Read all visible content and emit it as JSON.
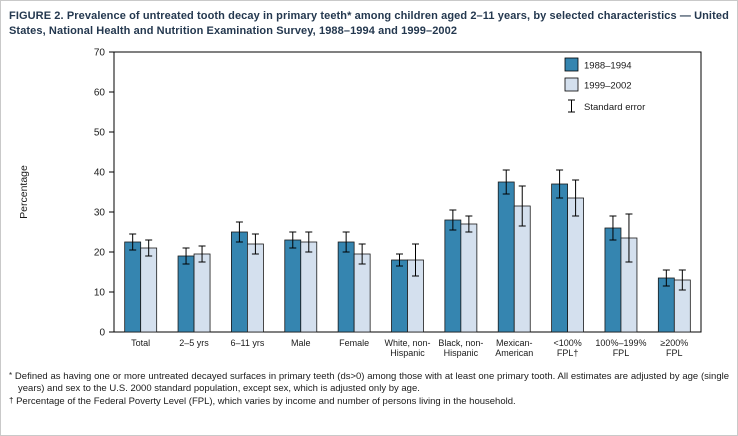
{
  "figure": {
    "title": "FIGURE 2. Prevalence of untreated tooth decay in primary teeth* among children aged 2–11 years, by selected characteristics — United States, National Health and Nutrition Examination Survey, 1988–1994 and 1999–2002",
    "footnotes": [
      {
        "marker": "*",
        "text": "Defined as having one or more untreated decayed surfaces in primary teeth (ds>0) among those with at least one primary tooth. All estimates are adjusted by age (single years) and sex to the U.S. 2000 standard population, except sex, which is adjusted only by age."
      },
      {
        "marker": "†",
        "text": "Percentage of the Federal Poverty Level (FPL), which varies by income and number of persons living in the household."
      }
    ]
  },
  "chart_data": {
    "type": "bar",
    "title": "Prevalence of untreated tooth decay in primary teeth among children aged 2–11 years, by selected characteristics, NHANES 1988–1994 and 1999–2002",
    "xlabel": "",
    "ylabel": "Percentage",
    "ylim": [
      0,
      70
    ],
    "yticks": [
      0,
      10,
      20,
      30,
      40,
      50,
      60,
      70
    ],
    "grid": false,
    "legend_position": "top-right",
    "legend": {
      "error_label": "Standard error"
    },
    "categories": [
      "Total",
      "2–5 yrs",
      "6–11 yrs",
      "Male",
      "Female",
      "White, non-\nHispanic",
      "Black, non-\nHispanic",
      "Mexican-\nAmerican",
      "<100%\nFPL†",
      "100%–199%\nFPL",
      "≥200%\nFPL"
    ],
    "series": [
      {
        "name": "1988–1994",
        "color": "#3585b0",
        "values": [
          22.5,
          19,
          25,
          23,
          22.5,
          18,
          28,
          37.5,
          37,
          26,
          13.5
        ],
        "errors": [
          2,
          2,
          2.5,
          2,
          2.5,
          1.5,
          2.5,
          3,
          3.5,
          3,
          2
        ]
      },
      {
        "name": "1999–2002",
        "color": "#d4e0ee",
        "values": [
          21,
          19.5,
          22,
          22.5,
          19.5,
          18,
          27,
          31.5,
          33.5,
          23.5,
          13
        ],
        "errors": [
          2,
          2,
          2.5,
          2.5,
          2.5,
          4,
          2,
          5,
          4.5,
          6,
          2.5
        ]
      }
    ]
  }
}
